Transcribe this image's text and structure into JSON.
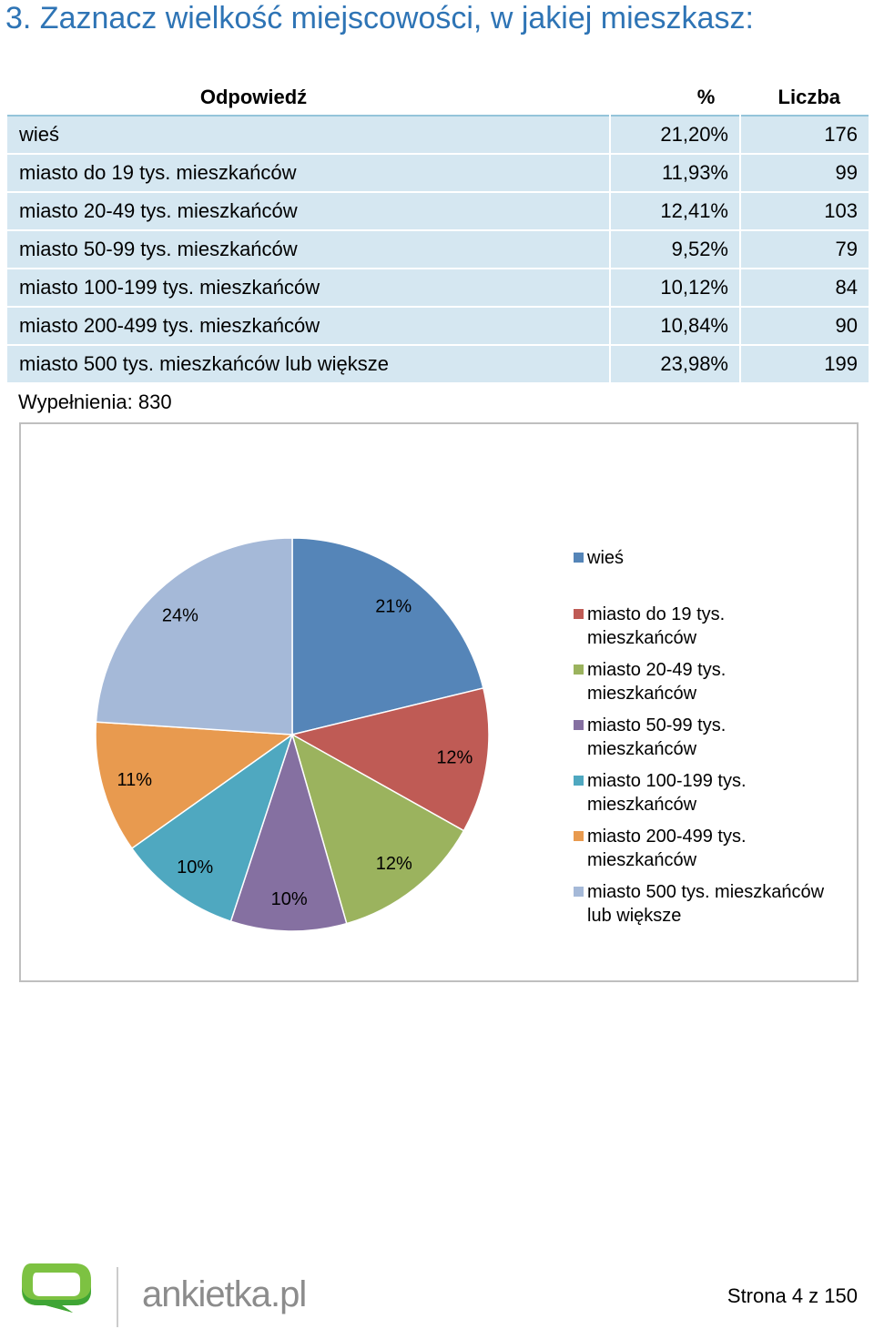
{
  "question": {
    "title": "3. Zaznacz wielkość miejscowości, w jakiej mieszkasz:"
  },
  "table": {
    "headers": {
      "answer": "Odpowiedź",
      "percent": "%",
      "count": "Liczba"
    },
    "rows": [
      {
        "answer": "wieś",
        "percent": "21,20%",
        "count": "176"
      },
      {
        "answer": "miasto do 19 tys. mieszkańców",
        "percent": "11,93%",
        "count": "99"
      },
      {
        "answer": "miasto 20-49 tys. mieszkańców",
        "percent": "12,41%",
        "count": "103"
      },
      {
        "answer": "miasto 50-99 tys. mieszkańców",
        "percent": "9,52%",
        "count": "79"
      },
      {
        "answer": "miasto 100-199 tys. mieszkańców",
        "percent": "10,12%",
        "count": "84"
      },
      {
        "answer": "miasto 200-499 tys. mieszkańców",
        "percent": "10,84%",
        "count": "90"
      },
      {
        "answer": "miasto 500 tys. mieszkańców lub większe",
        "percent": "23,98%",
        "count": "199"
      }
    ],
    "fill_count": "Wypełnienia: 830"
  },
  "chart_data": {
    "type": "pie",
    "categories": [
      "wieś",
      "miasto do 19 tys. mieszkańców",
      "miasto 20-49 tys. mieszkańców",
      "miasto 50-99 tys. mieszkańców",
      "miasto 100-199 tys. mieszkańców",
      "miasto 200-499 tys. mieszkańców",
      "miasto 500 tys. mieszkańców lub większe"
    ],
    "values": [
      21.2,
      11.93,
      12.41,
      9.52,
      10.12,
      10.84,
      23.98
    ],
    "data_labels": [
      "21%",
      "12%",
      "12%",
      "10%",
      "10%",
      "11%",
      "24%"
    ],
    "colors": [
      "#5585B8",
      "#BF5B55",
      "#9BB35E",
      "#8570A1",
      "#4FA8C0",
      "#E89A4F",
      "#A5B9D8"
    ],
    "legend": {
      "position": "right",
      "entries": [
        [
          "wieś"
        ],
        [
          "miasto do 19 tys.",
          "mieszkańców"
        ],
        [
          "miasto 20-49 tys.",
          "mieszkańców"
        ],
        [
          "miasto 50-99 tys.",
          "mieszkańców"
        ],
        [
          "miasto 100-199 tys.",
          "mieszkańców"
        ],
        [
          "miasto 200-499 tys.",
          "mieszkańców"
        ],
        [
          "miasto 500 tys. mieszkańców",
          "lub większe"
        ]
      ]
    }
  },
  "footer": {
    "brand": "ankietka.pl",
    "logo_colors": [
      "#7DC242",
      "#3FA535"
    ],
    "page": "Strona 4 z 150"
  }
}
